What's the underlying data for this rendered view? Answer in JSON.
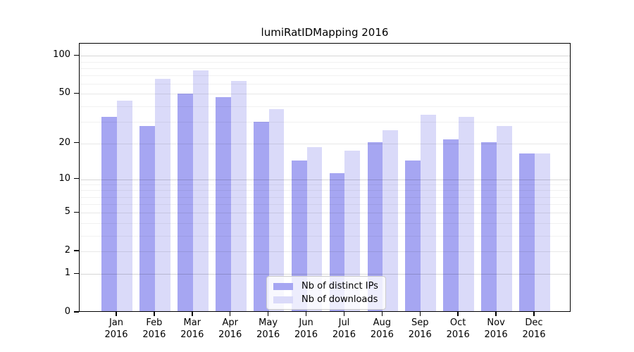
{
  "title": "lumiRatIDMapping 2016",
  "chart_data": {
    "type": "bar",
    "title": "lumiRatIDMapping 2016",
    "categories": [
      "Jan",
      "Feb",
      "Mar",
      "Apr",
      "May",
      "Jun",
      "Jul",
      "Aug",
      "Sep",
      "Oct",
      "Nov",
      "Dec"
    ],
    "year_label": "2016",
    "series": [
      {
        "name": "Nb of distinct IPs",
        "color": "#a6a6f2",
        "values": [
          32,
          27,
          49,
          46,
          29,
          14,
          11,
          20,
          14,
          21,
          20,
          16
        ]
      },
      {
        "name": "Nb of downloads",
        "color": "#dadaf9",
        "values": [
          43,
          64,
          75,
          62,
          37,
          18,
          17,
          25,
          33,
          32,
          27,
          16
        ]
      }
    ],
    "xlabel": "",
    "ylabel": "",
    "yscale": "log10(1+v)",
    "ylim": [
      0,
      125
    ],
    "yticks": [
      0,
      1,
      2,
      5,
      10,
      20,
      50,
      100
    ],
    "major_gridlines": [
      1,
      10,
      100
    ],
    "mid_gridlines": [
      2,
      5,
      20,
      50
    ],
    "minor_gridlines": [
      3,
      4,
      6,
      7,
      8,
      9,
      30,
      40,
      60,
      70,
      80,
      90
    ],
    "grid": "on",
    "legend_position": "lower center"
  }
}
